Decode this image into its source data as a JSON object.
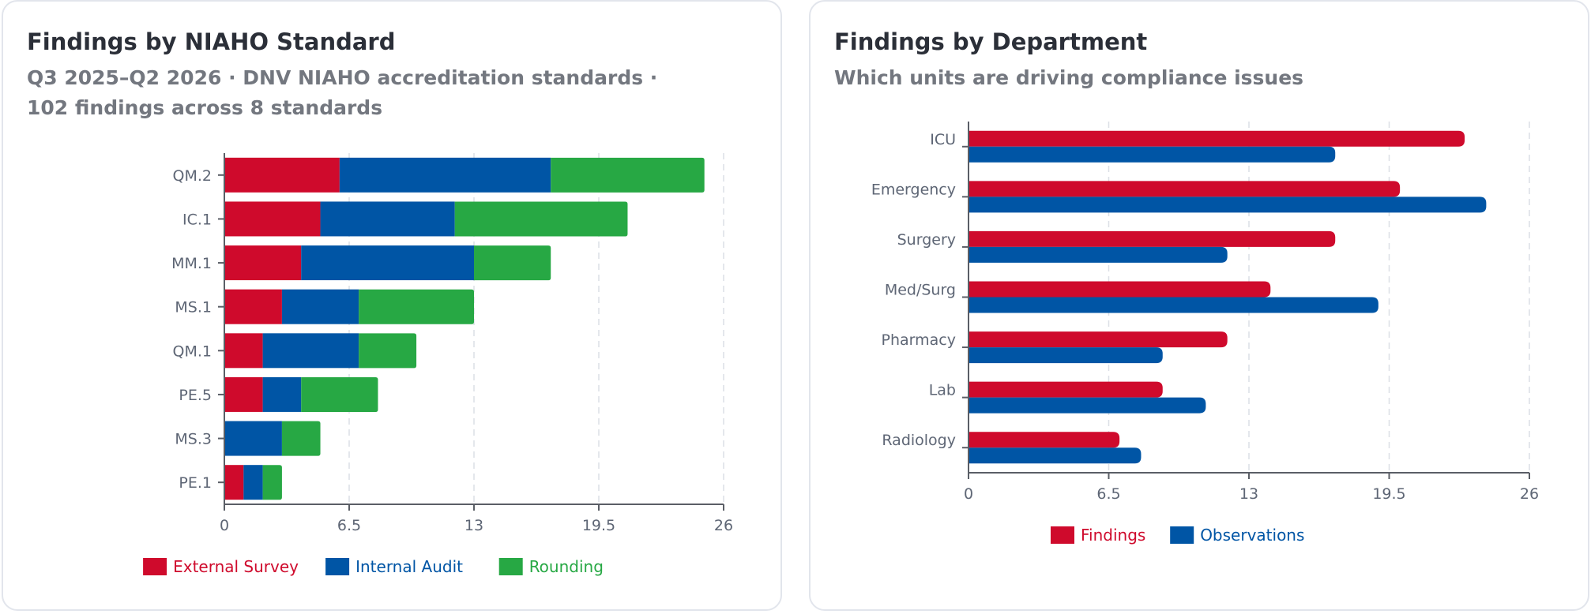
{
  "left_card": {
    "title": "Findings by NIAHO Standard",
    "subtitle_line1": "Q3 2025–Q2 2026 · DNV NIAHO accreditation standards ·",
    "subtitle_line2": "102 findings across 8 standards"
  },
  "right_card": {
    "title": "Findings by Department",
    "subtitle": "Which units are driving compliance issues"
  },
  "chart_data": [
    {
      "type": "bar",
      "orientation": "horizontal",
      "stacked": true,
      "categories": [
        "QM.2",
        "IC.1",
        "MM.1",
        "MS.1",
        "QM.1",
        "PE.5",
        "MS.3",
        "PE.1"
      ],
      "series": [
        {
          "name": "External Survey",
          "color": "#cf0a2c",
          "values": [
            6,
            5,
            4,
            3,
            2,
            2,
            0,
            1
          ]
        },
        {
          "name": "Internal Audit",
          "color": "#0055a5",
          "values": [
            11,
            7,
            9,
            4,
            5,
            2,
            3,
            1
          ]
        },
        {
          "name": "Rounding",
          "color": "#27a844",
          "values": [
            8,
            9,
            4,
            6,
            3,
            4,
            2,
            1
          ]
        }
      ],
      "xlim": [
        0,
        26
      ],
      "xticks": [
        "0",
        "6.5",
        "13",
        "19.5",
        "26"
      ],
      "grid": true,
      "legend": "bottom"
    },
    {
      "type": "bar",
      "orientation": "horizontal",
      "stacked": false,
      "categories": [
        "ICU",
        "Emergency",
        "Surgery",
        "Med/Surg",
        "Pharmacy",
        "Lab",
        "Radiology"
      ],
      "series": [
        {
          "name": "Findings",
          "color": "#cf0a2c",
          "values": [
            23,
            20,
            17,
            14,
            12,
            9,
            7
          ]
        },
        {
          "name": "Observations",
          "color": "#0055a5",
          "values": [
            17,
            24,
            12,
            19,
            9,
            11,
            8
          ]
        }
      ],
      "xlim": [
        0,
        26
      ],
      "xticks": [
        "0",
        "6.5",
        "13",
        "19.5",
        "26"
      ],
      "grid": true,
      "legend": "bottom"
    }
  ]
}
